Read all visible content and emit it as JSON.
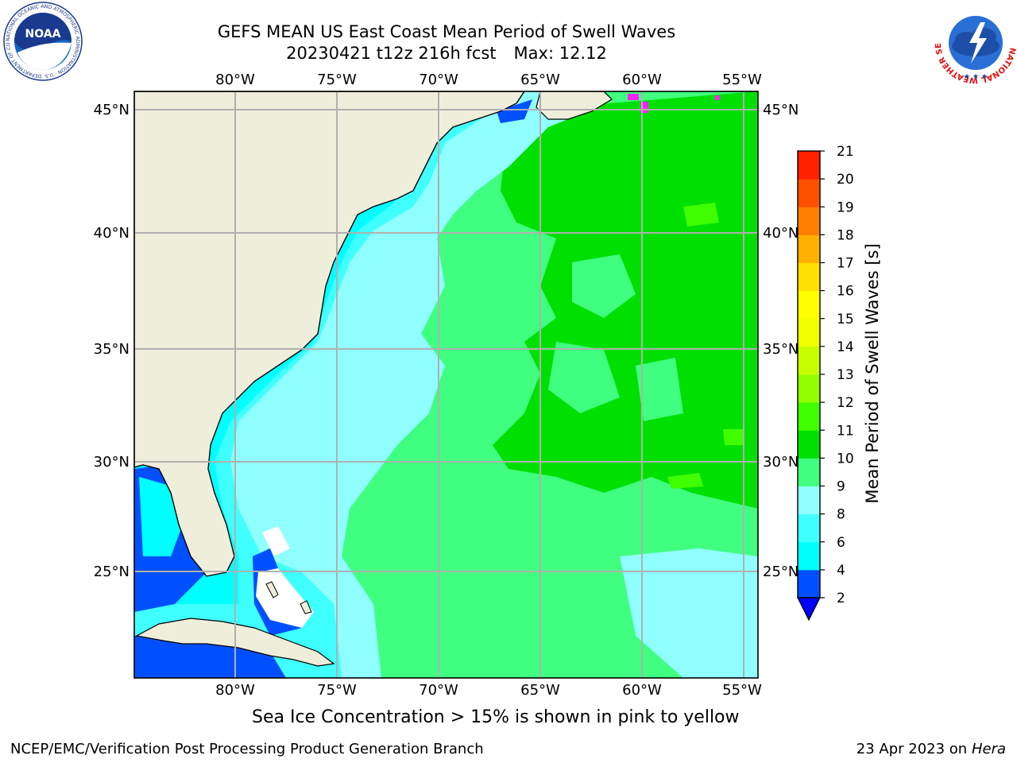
{
  "title": {
    "line1": "GEFS MEAN US East Coast Mean Period of Swell Waves",
    "line2_left": "20230421 t12z 216h fcst",
    "line2_right": "Max: 12.12"
  },
  "map": {
    "lon_ticks": [
      "80°W",
      "75°W",
      "70°W",
      "65°W",
      "60°W",
      "55°W"
    ],
    "lat_ticks": [
      "45°N",
      "40°N",
      "35°N",
      "30°N",
      "25°N"
    ],
    "lon_range": [
      -85,
      -54.3
    ],
    "lat_range": [
      20.5,
      45.8
    ],
    "grid": true,
    "colors": {
      "land": "#efeedb",
      "grid": "#b0b0b0",
      "coast": "#000000",
      "sea_ice": "#ff22ff"
    }
  },
  "colorbar": {
    "label": "Mean Period of Swell Waves [s]",
    "levels": [
      "2",
      "4",
      "6",
      "8",
      "9",
      "10",
      "11",
      "12",
      "13",
      "14",
      "15",
      "16",
      "17",
      "18",
      "19",
      "20",
      "21"
    ],
    "colors": [
      "#0050ff",
      "#00ffff",
      "#40ffff",
      "#90ffff",
      "#40ff80",
      "#00e000",
      "#40ff00",
      "#90ff00",
      "#c8ff00",
      "#f0ff00",
      "#ffff00",
      "#ffe000",
      "#ffb000",
      "#ff8000",
      "#ff5000",
      "#ff2000"
    ],
    "under_color": "#0000ff"
  },
  "note": "Sea Ice Concentration > 15% is shown in pink to yellow",
  "footer": {
    "left": "NCEP/EMC/Verification Post Processing Product Generation Branch",
    "right_date": "23 Apr 2023 on ",
    "right_host": "Hera"
  },
  "logos": {
    "noaa_text": "NOAA",
    "noaa_ring": "NATIONAL OCEANIC AND ATMOSPHERIC ADMINISTRATION · U.S. DEPARTMENT OF COMMERCE",
    "nws_ring": "NATIONAL WEATHER SERVICE"
  }
}
